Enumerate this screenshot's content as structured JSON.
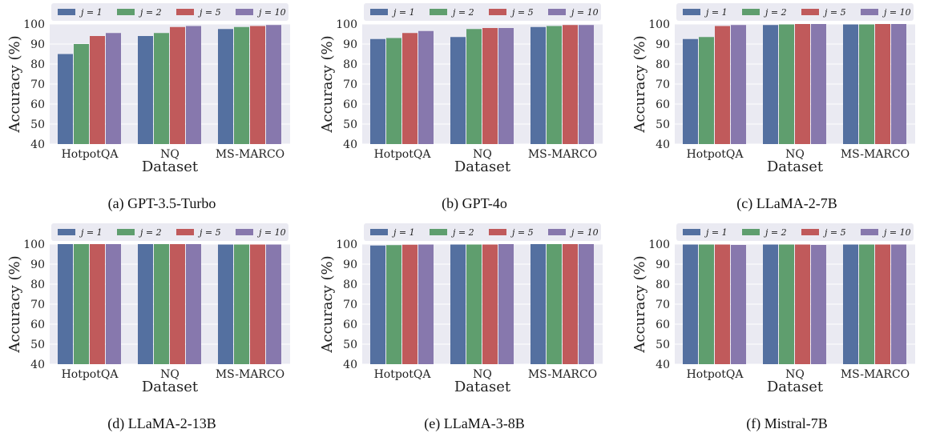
{
  "legend_labels": [
    "j = 1",
    "j = 2",
    "j = 5",
    "j = 10"
  ],
  "series_colors": [
    "#5470a0",
    "#5f9e6e",
    "#c05a5b",
    "#8778ad"
  ],
  "chart_data": [
    {
      "type": "bar",
      "caption": "(a) GPT-3.5-Turbo",
      "categories": [
        "HotpotQA",
        "NQ",
        "MS-MARCO"
      ],
      "xlabel": "Dataset",
      "ylabel": "Accuracy (%)",
      "ylim": [
        40,
        100
      ],
      "yticks": [
        40,
        50,
        60,
        70,
        80,
        90,
        100
      ],
      "grid": true,
      "legend_position": "top",
      "series": [
        {
          "name": "j = 1",
          "values": [
            85,
            94,
            97.5
          ]
        },
        {
          "name": "j = 2",
          "values": [
            90,
            95.5,
            98.5
          ]
        },
        {
          "name": "j = 5",
          "values": [
            94,
            98.5,
            99
          ]
        },
        {
          "name": "j = 10",
          "values": [
            95.5,
            99,
            99.5
          ]
        }
      ]
    },
    {
      "type": "bar",
      "caption": "(b) GPT-4o",
      "categories": [
        "HotpotQA",
        "NQ",
        "MS-MARCO"
      ],
      "xlabel": "Dataset",
      "ylabel": "Accuracy (%)",
      "ylim": [
        40,
        100
      ],
      "yticks": [
        40,
        50,
        60,
        70,
        80,
        90,
        100
      ],
      "grid": true,
      "legend_position": "top",
      "series": [
        {
          "name": "j = 1",
          "values": [
            92.5,
            93.5,
            98.5
          ]
        },
        {
          "name": "j = 2",
          "values": [
            93,
            97.5,
            99
          ]
        },
        {
          "name": "j = 5",
          "values": [
            95.5,
            98,
            99.5
          ]
        },
        {
          "name": "j = 10",
          "values": [
            96.5,
            98,
            99.5
          ]
        }
      ]
    },
    {
      "type": "bar",
      "caption": "(c) LLaMA-2-7B",
      "categories": [
        "HotpotQA",
        "NQ",
        "MS-MARCO"
      ],
      "xlabel": "Dataset",
      "ylabel": "Accuracy (%)",
      "ylim": [
        40,
        100
      ],
      "yticks": [
        40,
        50,
        60,
        70,
        80,
        90,
        100
      ],
      "grid": true,
      "legend_position": "top",
      "series": [
        {
          "name": "j = 1",
          "values": [
            92.5,
            99.5,
            99.8
          ]
        },
        {
          "name": "j = 2",
          "values": [
            93.5,
            99.8,
            99.8
          ]
        },
        {
          "name": "j = 5",
          "values": [
            99,
            100,
            100
          ]
        },
        {
          "name": "j = 10",
          "values": [
            99.5,
            100,
            100
          ]
        }
      ]
    },
    {
      "type": "bar",
      "caption": "(d) LLaMA-2-13B",
      "categories": [
        "HotpotQA",
        "NQ",
        "MS-MARCO"
      ],
      "xlabel": "Dataset",
      "ylabel": "Accuracy (%)",
      "ylim": [
        40,
        100
      ],
      "yticks": [
        40,
        50,
        60,
        70,
        80,
        90,
        100
      ],
      "grid": true,
      "legend_position": "top",
      "series": [
        {
          "name": "j = 1",
          "values": [
            100,
            100,
            99.8
          ]
        },
        {
          "name": "j = 2",
          "values": [
            100,
            100,
            99.8
          ]
        },
        {
          "name": "j = 5",
          "values": [
            100,
            100,
            99.8
          ]
        },
        {
          "name": "j = 10",
          "values": [
            100,
            100,
            99.8
          ]
        }
      ]
    },
    {
      "type": "bar",
      "caption": "(e) LLaMA-3-8B",
      "categories": [
        "HotpotQA",
        "NQ",
        "MS-MARCO"
      ],
      "xlabel": "Dataset",
      "ylabel": "Accuracy (%)",
      "ylim": [
        40,
        100
      ],
      "yticks": [
        40,
        50,
        60,
        70,
        80,
        90,
        100
      ],
      "grid": true,
      "legend_position": "top",
      "series": [
        {
          "name": "j = 1",
          "values": [
            99.3,
            99.8,
            100
          ]
        },
        {
          "name": "j = 2",
          "values": [
            99.5,
            99.8,
            100
          ]
        },
        {
          "name": "j = 5",
          "values": [
            99.7,
            99.8,
            100
          ]
        },
        {
          "name": "j = 10",
          "values": [
            99.8,
            100,
            100
          ]
        }
      ]
    },
    {
      "type": "bar",
      "caption": "(f) Mistral-7B",
      "categories": [
        "HotpotQA",
        "NQ",
        "MS-MARCO"
      ],
      "xlabel": "Dataset",
      "ylabel": "Accuracy (%)",
      "ylim": [
        40,
        100
      ],
      "yticks": [
        40,
        50,
        60,
        70,
        80,
        90,
        100
      ],
      "grid": true,
      "legend_position": "top",
      "series": [
        {
          "name": "j = 1",
          "values": [
            99.8,
            99.8,
            99.8
          ]
        },
        {
          "name": "j = 2",
          "values": [
            99.8,
            99.8,
            99.8
          ]
        },
        {
          "name": "j = 5",
          "values": [
            99.8,
            99.8,
            99.8
          ]
        },
        {
          "name": "j = 10",
          "values": [
            99.6,
            99.6,
            99.8
          ]
        }
      ]
    }
  ]
}
